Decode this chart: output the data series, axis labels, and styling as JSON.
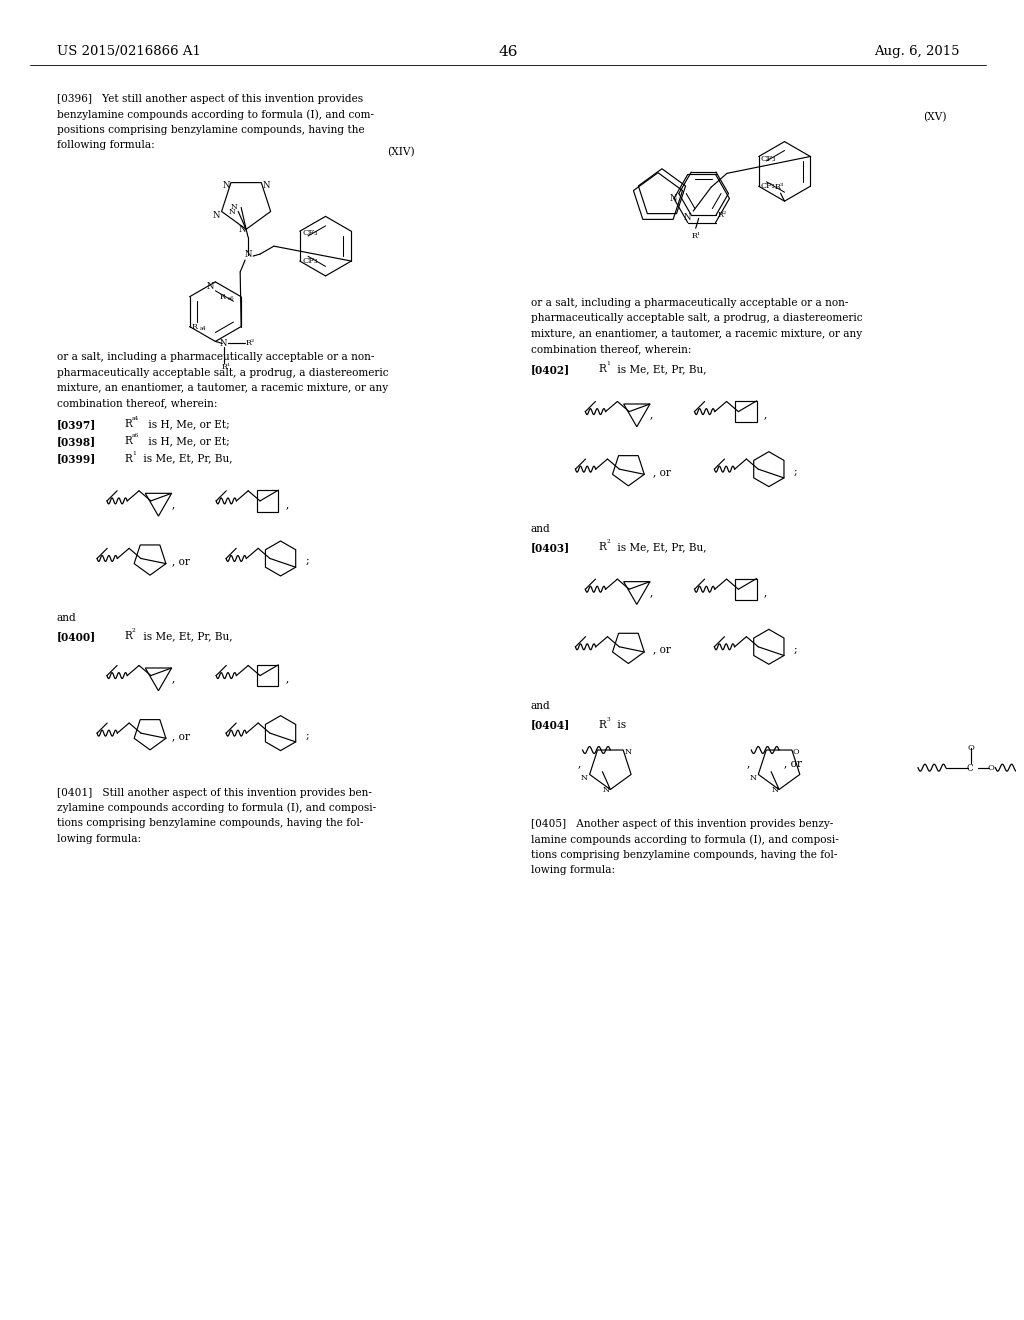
{
  "header_left": "US 2015/0216866 A1",
  "header_right": "Aug. 6, 2015",
  "page_number": "46",
  "background": "#ffffff",
  "text_color": "#000000",
  "left_paragraphs": [
    {
      "tag": "[0396]",
      "text": "Yet still another aspect of this invention provides benzylamine compounds according to formula (I), and compositions comprising benzylamine compounds, having the following formula:"
    },
    {
      "tag": "[0397]",
      "text": "Rᵃ⁴ is H, Me, or Et;"
    },
    {
      "tag": "[0398]",
      "text": "Rᵃ⁶ is H, Me, or Et;"
    },
    {
      "tag": "[0399]",
      "text": "R¹ is Me, Et, Pr, Bu,"
    },
    {
      "tag": "[0400]",
      "text": "R² is Me, Et, Pr, Bu,"
    },
    {
      "tag": "[0401]",
      "text": "Still another aspect of this invention provides benzylamine compounds according to formula (I), and compositions comprising benzylamine compounds, having the following formula:"
    }
  ],
  "right_paragraphs": [
    {
      "tag": "[0402]",
      "text": "R¹ is Me, Et, Pr, Bu,"
    },
    {
      "tag": "[0403]",
      "text": "R² is Me, Et, Pr, Bu,"
    },
    {
      "tag": "[0404]",
      "text": "R³ is"
    },
    {
      "tag": "[0405]",
      "text": "Another aspect of this invention provides benzylamine compounds according to formula (I), and compositions comprising benzylamine compounds, having the following formula:"
    }
  ],
  "right_salt_text": "or a salt, including a pharmaceutically acceptable or a non-pharmaceutically acceptable salt, a prodrug, a diastereomeric mixture, an enantiomer, a tautomer, a racemic mixture, or any combination thereof, wherein:",
  "left_salt_text": "or a salt, including a pharmaceutically acceptable or a non-pharmaceutically acceptable salt, a prodrug, a diastereomeric mixture, an enantiomer, a tautomer, a racemic mixture, or any combination thereof, wherein:"
}
